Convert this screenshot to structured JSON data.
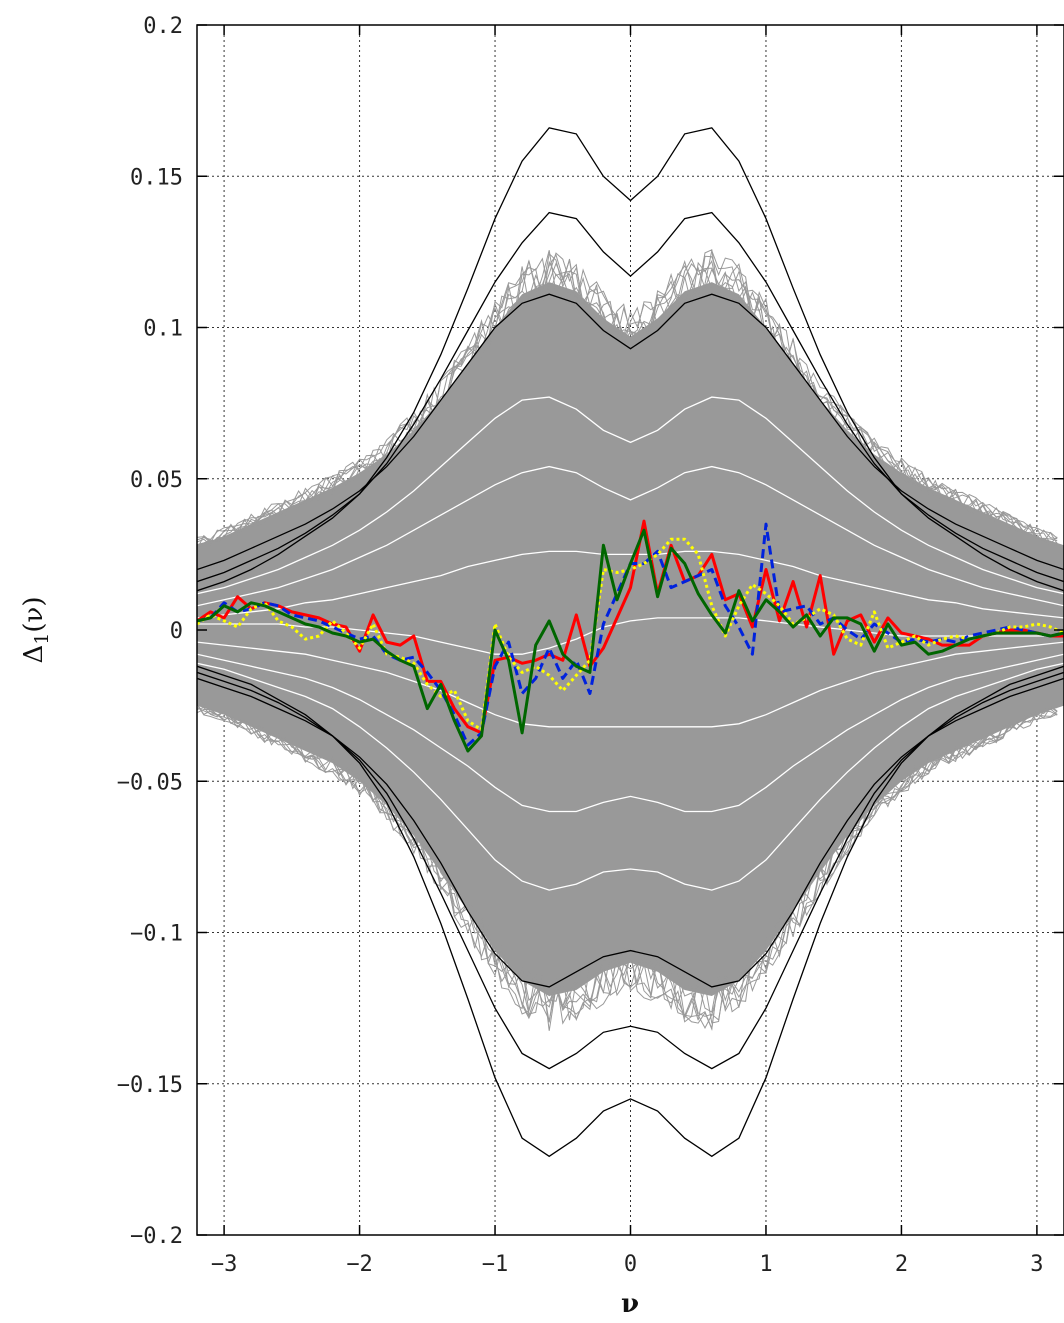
{
  "chart_data": {
    "type": "line",
    "xlabel": "ν",
    "ylabel": "Δ",
    "ylabel_sub": "1",
    "ylabel_arg": "(ν)",
    "xlim": [
      -3.2,
      3.2
    ],
    "ylim": [
      -0.2,
      0.2
    ],
    "x_ticks": [
      -3,
      -2,
      -1,
      0,
      1,
      2,
      3
    ],
    "y_ticks": [
      -0.2,
      -0.15,
      -0.1,
      -0.05,
      0,
      0.05,
      0.1,
      0.15,
      0.2
    ],
    "x_tick_labels": [
      "−3",
      "−2",
      "−1",
      "0",
      "1",
      "2",
      "3"
    ],
    "y_tick_labels": [
      "−0.2",
      "−0.15",
      "−0.1",
      "−0.05",
      "0",
      "0.05",
      "0.1",
      "0.15",
      "0.2"
    ],
    "grid": true,
    "colors": {
      "background": "#ffffff",
      "simulations": "#999999",
      "envelope": "#000000",
      "quantiles": "#ffffff",
      "grid": "#333333"
    },
    "envelope": {
      "x": [
        -3.2,
        -3.0,
        -2.8,
        -2.6,
        -2.4,
        -2.2,
        -2.0,
        -1.8,
        -1.6,
        -1.4,
        -1.2,
        -1.0,
        -0.8,
        -0.6,
        -0.4,
        -0.2,
        0.0,
        0.2,
        0.4,
        0.6,
        0.8,
        1.0,
        1.2,
        1.4,
        1.6,
        1.8,
        2.0,
        2.2,
        2.4,
        2.6,
        2.8,
        3.0,
        3.2
      ],
      "upper": [
        0.028,
        0.031,
        0.035,
        0.039,
        0.043,
        0.047,
        0.052,
        0.058,
        0.066,
        0.076,
        0.088,
        0.1,
        0.111,
        0.115,
        0.112,
        0.103,
        0.097,
        0.103,
        0.112,
        0.115,
        0.111,
        0.1,
        0.088,
        0.076,
        0.066,
        0.058,
        0.052,
        0.047,
        0.043,
        0.039,
        0.035,
        0.031,
        0.028
      ],
      "lower": [
        -0.025,
        -0.028,
        -0.032,
        -0.036,
        -0.04,
        -0.044,
        -0.05,
        -0.058,
        -0.068,
        -0.08,
        -0.093,
        -0.106,
        -0.116,
        -0.121,
        -0.119,
        -0.113,
        -0.11,
        -0.113,
        -0.119,
        -0.121,
        -0.116,
        -0.106,
        -0.093,
        -0.08,
        -0.068,
        -0.058,
        -0.05,
        -0.044,
        -0.04,
        -0.036,
        -0.032,
        -0.028,
        -0.025
      ]
    },
    "black_curves": [
      [
        0.02,
        0.023,
        0.027,
        0.031,
        0.035,
        0.04,
        0.046,
        0.054,
        0.064,
        0.076,
        0.088,
        0.1,
        0.108,
        0.111,
        0.108,
        0.099,
        0.093,
        0.099,
        0.108,
        0.111,
        0.108,
        0.1,
        0.088,
        0.076,
        0.064,
        0.054,
        0.046,
        0.04,
        0.035,
        0.031,
        0.027,
        0.023,
        0.02
      ],
      [
        0.016,
        0.019,
        0.023,
        0.027,
        0.032,
        0.038,
        0.045,
        0.055,
        0.068,
        0.083,
        0.099,
        0.115,
        0.128,
        0.138,
        0.136,
        0.125,
        0.117,
        0.125,
        0.136,
        0.138,
        0.128,
        0.115,
        0.099,
        0.083,
        0.068,
        0.055,
        0.045,
        0.038,
        0.032,
        0.027,
        0.023,
        0.019,
        0.016
      ],
      [
        0.013,
        0.016,
        0.02,
        0.025,
        0.031,
        0.037,
        0.045,
        0.057,
        0.072,
        0.091,
        0.113,
        0.136,
        0.155,
        0.166,
        0.164,
        0.15,
        0.142,
        0.15,
        0.164,
        0.166,
        0.155,
        0.136,
        0.113,
        0.091,
        0.072,
        0.057,
        0.045,
        0.037,
        0.031,
        0.025,
        0.02,
        0.016,
        0.013
      ],
      [
        -0.016,
        -0.019,
        -0.022,
        -0.026,
        -0.03,
        -0.035,
        -0.042,
        -0.051,
        -0.063,
        -0.077,
        -0.093,
        -0.107,
        -0.116,
        -0.118,
        -0.113,
        -0.108,
        -0.106,
        -0.108,
        -0.113,
        -0.118,
        -0.116,
        -0.107,
        -0.093,
        -0.077,
        -0.063,
        -0.051,
        -0.042,
        -0.035,
        -0.03,
        -0.026,
        -0.022,
        -0.019,
        -0.016
      ],
      [
        -0.014,
        -0.017,
        -0.02,
        -0.024,
        -0.029,
        -0.035,
        -0.043,
        -0.054,
        -0.069,
        -0.087,
        -0.106,
        -0.125,
        -0.14,
        -0.145,
        -0.14,
        -0.133,
        -0.131,
        -0.133,
        -0.14,
        -0.145,
        -0.14,
        -0.125,
        -0.106,
        -0.087,
        -0.069,
        -0.054,
        -0.043,
        -0.035,
        -0.029,
        -0.024,
        -0.02,
        -0.017,
        -0.014
      ],
      [
        -0.012,
        -0.015,
        -0.018,
        -0.023,
        -0.028,
        -0.035,
        -0.044,
        -0.057,
        -0.075,
        -0.097,
        -0.122,
        -0.148,
        -0.168,
        -0.174,
        -0.168,
        -0.159,
        -0.155,
        -0.159,
        -0.168,
        -0.174,
        -0.168,
        -0.148,
        -0.122,
        -0.097,
        -0.075,
        -0.057,
        -0.044,
        -0.035,
        -0.028,
        -0.023,
        -0.018,
        -0.015,
        -0.012
      ]
    ],
    "white_curves": [
      [
        0.012,
        0.014,
        0.017,
        0.02,
        0.024,
        0.028,
        0.033,
        0.039,
        0.046,
        0.054,
        0.062,
        0.07,
        0.076,
        0.077,
        0.073,
        0.066,
        0.062,
        0.066,
        0.073,
        0.077,
        0.076,
        0.07,
        0.062,
        0.054,
        0.046,
        0.039,
        0.033,
        0.028,
        0.024,
        0.02,
        0.017,
        0.014,
        0.012
      ],
      [
        0.008,
        0.01,
        0.012,
        0.014,
        0.017,
        0.02,
        0.024,
        0.028,
        0.033,
        0.038,
        0.043,
        0.048,
        0.052,
        0.054,
        0.052,
        0.047,
        0.043,
        0.047,
        0.052,
        0.054,
        0.052,
        0.048,
        0.043,
        0.038,
        0.033,
        0.028,
        0.024,
        0.02,
        0.017,
        0.014,
        0.012,
        0.01,
        0.008
      ],
      [
        0.004,
        0.005,
        0.006,
        0.007,
        0.009,
        0.01,
        0.012,
        0.014,
        0.016,
        0.018,
        0.021,
        0.023,
        0.025,
        0.026,
        0.026,
        0.025,
        0.025,
        0.025,
        0.026,
        0.026,
        0.025,
        0.023,
        0.021,
        0.018,
        0.016,
        0.014,
        0.012,
        0.01,
        0.009,
        0.007,
        0.006,
        0.005,
        0.004
      ],
      [
        0.002,
        0.002,
        0.002,
        0.002,
        0.001,
        0.001,
        0.0,
        -0.001,
        -0.002,
        -0.004,
        -0.006,
        -0.008,
        -0.008,
        -0.006,
        -0.003,
        0.001,
        0.003,
        0.004,
        0.004,
        0.004,
        0.004,
        0.003,
        0.002,
        0.001,
        0.0,
        -0.001,
        -0.002,
        -0.002,
        -0.002,
        -0.002,
        -0.002,
        -0.002,
        -0.002
      ],
      [
        -0.004,
        -0.005,
        -0.006,
        -0.007,
        -0.008,
        -0.01,
        -0.012,
        -0.014,
        -0.017,
        -0.02,
        -0.024,
        -0.028,
        -0.031,
        -0.032,
        -0.032,
        -0.032,
        -0.032,
        -0.032,
        -0.032,
        -0.032,
        -0.031,
        -0.028,
        -0.024,
        -0.02,
        -0.017,
        -0.014,
        -0.012,
        -0.01,
        -0.008,
        -0.007,
        -0.006,
        -0.005,
        -0.004
      ],
      [
        -0.008,
        -0.01,
        -0.012,
        -0.014,
        -0.016,
        -0.019,
        -0.023,
        -0.028,
        -0.033,
        -0.039,
        -0.045,
        -0.052,
        -0.058,
        -0.06,
        -0.06,
        -0.057,
        -0.055,
        -0.057,
        -0.06,
        -0.06,
        -0.058,
        -0.052,
        -0.045,
        -0.039,
        -0.033,
        -0.028,
        -0.023,
        -0.019,
        -0.016,
        -0.014,
        -0.012,
        -0.01,
        -0.008
      ],
      [
        -0.011,
        -0.013,
        -0.016,
        -0.019,
        -0.022,
        -0.026,
        -0.032,
        -0.039,
        -0.047,
        -0.056,
        -0.066,
        -0.076,
        -0.083,
        -0.086,
        -0.084,
        -0.08,
        -0.079,
        -0.08,
        -0.084,
        -0.086,
        -0.083,
        -0.076,
        -0.066,
        -0.056,
        -0.047,
        -0.039,
        -0.032,
        -0.026,
        -0.022,
        -0.019,
        -0.016,
        -0.013,
        -0.011
      ]
    ],
    "series": [
      {
        "color": "#ff0000",
        "style": "solid",
        "width": 3,
        "x": [
          -3.2,
          -3.1,
          -3.0,
          -2.9,
          -2.8,
          -2.7,
          -2.6,
          -2.5,
          -2.4,
          -2.3,
          -2.2,
          -2.1,
          -2.0,
          -1.9,
          -1.8,
          -1.7,
          -1.6,
          -1.5,
          -1.4,
          -1.3,
          -1.2,
          -1.1,
          -1.0,
          -0.9,
          -0.8,
          -0.7,
          -0.6,
          -0.5,
          -0.4,
          -0.3,
          -0.2,
          -0.1,
          0.0,
          0.1,
          0.2,
          0.3,
          0.4,
          0.5,
          0.6,
          0.7,
          0.8,
          0.9,
          1.0,
          1.1,
          1.2,
          1.3,
          1.4,
          1.5,
          1.6,
          1.7,
          1.8,
          1.9,
          2.0,
          2.1,
          2.2,
          2.3,
          2.4,
          2.5,
          2.6,
          2.7,
          2.8,
          2.9,
          3.0,
          3.1,
          3.2
        ],
        "y": [
          0.003,
          0.006,
          0.004,
          0.011,
          0.007,
          0.009,
          0.008,
          0.006,
          0.005,
          0.004,
          0.002,
          0.001,
          -0.007,
          0.005,
          -0.004,
          -0.005,
          -0.002,
          -0.017,
          -0.017,
          -0.026,
          -0.032,
          -0.034,
          -0.01,
          -0.009,
          -0.011,
          -0.01,
          -0.008,
          -0.01,
          0.005,
          -0.012,
          -0.006,
          0.004,
          0.014,
          0.036,
          0.012,
          0.028,
          0.016,
          0.018,
          0.025,
          0.01,
          0.012,
          0.001,
          0.02,
          0.003,
          0.016,
          0.001,
          0.018,
          -0.008,
          0.003,
          0.005,
          -0.004,
          0.004,
          -0.001,
          -0.002,
          -0.003,
          -0.005,
          -0.005,
          -0.005,
          -0.002,
          -0.001,
          0.0,
          0.0,
          -0.001,
          -0.002,
          -0.002
        ]
      },
      {
        "color": "#0022dd",
        "style": "dashed",
        "width": 3,
        "x": [
          -3.2,
          -3.1,
          -3.0,
          -2.9,
          -2.8,
          -2.7,
          -2.6,
          -2.5,
          -2.4,
          -2.3,
          -2.2,
          -2.1,
          -2.0,
          -1.9,
          -1.8,
          -1.7,
          -1.6,
          -1.5,
          -1.4,
          -1.3,
          -1.2,
          -1.1,
          -1.0,
          -0.9,
          -0.8,
          -0.7,
          -0.6,
          -0.5,
          -0.4,
          -0.3,
          -0.2,
          -0.1,
          0.0,
          0.1,
          0.2,
          0.3,
          0.4,
          0.5,
          0.6,
          0.7,
          0.8,
          0.9,
          1.0,
          1.1,
          1.2,
          1.3,
          1.4,
          1.5,
          1.6,
          1.7,
          1.8,
          1.9,
          2.0,
          2.1,
          2.2,
          2.3,
          2.4,
          2.5,
          2.6,
          2.7,
          2.8,
          2.9,
          3.0,
          3.1,
          3.2
        ],
        "y": [
          0.003,
          0.004,
          0.009,
          0.006,
          0.007,
          0.009,
          0.008,
          0.005,
          0.004,
          0.003,
          0.001,
          -0.001,
          -0.003,
          -0.002,
          -0.008,
          -0.01,
          -0.009,
          -0.014,
          -0.02,
          -0.028,
          -0.038,
          -0.034,
          -0.012,
          -0.004,
          -0.021,
          -0.016,
          -0.006,
          -0.016,
          -0.01,
          -0.021,
          0.002,
          0.012,
          0.022,
          0.022,
          0.026,
          0.014,
          0.016,
          0.018,
          0.02,
          0.008,
          0.001,
          -0.008,
          0.035,
          0.006,
          0.007,
          0.008,
          0.002,
          0.004,
          0.0,
          -0.003,
          0.002,
          -0.001,
          -0.004,
          -0.003,
          -0.004,
          -0.003,
          -0.004,
          -0.002,
          -0.001,
          0.0,
          0.001,
          0.0,
          -0.001,
          -0.002,
          -0.001
        ]
      },
      {
        "color": "#ffff00",
        "style": "dotted",
        "width": 3,
        "x": [
          -3.2,
          -3.1,
          -3.0,
          -2.9,
          -2.8,
          -2.7,
          -2.6,
          -2.5,
          -2.4,
          -2.3,
          -2.2,
          -2.1,
          -2.0,
          -1.9,
          -1.8,
          -1.7,
          -1.6,
          -1.5,
          -1.4,
          -1.3,
          -1.2,
          -1.1,
          -1.0,
          -0.9,
          -0.8,
          -0.7,
          -0.6,
          -0.5,
          -0.4,
          -0.3,
          -0.2,
          -0.1,
          0.0,
          0.1,
          0.2,
          0.3,
          0.4,
          0.5,
          0.6,
          0.7,
          0.8,
          0.9,
          1.0,
          1.1,
          1.2,
          1.3,
          1.4,
          1.5,
          1.6,
          1.7,
          1.8,
          1.9,
          2.0,
          2.1,
          2.2,
          2.3,
          2.4,
          2.5,
          2.6,
          2.7,
          2.8,
          2.9,
          3.0,
          3.1,
          3.2
        ],
        "y": [
          0.002,
          0.005,
          0.003,
          0.001,
          0.007,
          0.009,
          0.003,
          0.001,
          -0.003,
          -0.002,
          0.003,
          -0.001,
          -0.006,
          0.002,
          -0.008,
          -0.009,
          -0.011,
          -0.018,
          -0.022,
          -0.02,
          -0.03,
          -0.033,
          0.002,
          -0.009,
          -0.014,
          -0.012,
          -0.015,
          -0.02,
          -0.015,
          -0.01,
          0.02,
          0.019,
          0.02,
          0.022,
          0.025,
          0.03,
          0.03,
          0.025,
          0.008,
          -0.002,
          0.008,
          0.015,
          0.012,
          0.008,
          0.002,
          0.004,
          0.007,
          0.005,
          -0.003,
          -0.005,
          0.006,
          -0.006,
          -0.004,
          -0.002,
          -0.005,
          -0.003,
          -0.002,
          -0.003,
          -0.002,
          -0.001,
          0.001,
          0.001,
          0.002,
          0.001,
          -0.001
        ]
      },
      {
        "color": "#006600",
        "style": "solid",
        "width": 3,
        "x": [
          -3.2,
          -3.1,
          -3.0,
          -2.9,
          -2.8,
          -2.7,
          -2.6,
          -2.5,
          -2.4,
          -2.3,
          -2.2,
          -2.1,
          -2.0,
          -1.9,
          -1.8,
          -1.7,
          -1.6,
          -1.5,
          -1.4,
          -1.3,
          -1.2,
          -1.1,
          -1.0,
          -0.9,
          -0.8,
          -0.7,
          -0.6,
          -0.5,
          -0.4,
          -0.3,
          -0.2,
          -0.1,
          0.0,
          0.1,
          0.2,
          0.3,
          0.4,
          0.5,
          0.6,
          0.7,
          0.8,
          0.9,
          1.0,
          1.1,
          1.2,
          1.3,
          1.4,
          1.5,
          1.6,
          1.7,
          1.8,
          1.9,
          2.0,
          2.1,
          2.2,
          2.3,
          2.4,
          2.5,
          2.6,
          2.7,
          2.8,
          2.9,
          3.0,
          3.1,
          3.2
        ],
        "y": [
          0.003,
          0.004,
          0.008,
          0.006,
          0.009,
          0.008,
          0.006,
          0.004,
          0.002,
          0.001,
          -0.001,
          -0.002,
          -0.004,
          -0.003,
          -0.007,
          -0.01,
          -0.012,
          -0.026,
          -0.018,
          -0.03,
          -0.04,
          -0.035,
          0.0,
          -0.01,
          -0.034,
          -0.005,
          0.003,
          -0.008,
          -0.012,
          -0.014,
          0.028,
          0.01,
          0.022,
          0.033,
          0.011,
          0.027,
          0.022,
          0.012,
          0.005,
          -0.001,
          0.013,
          0.003,
          0.01,
          0.006,
          0.001,
          0.005,
          -0.002,
          0.004,
          0.004,
          0.002,
          -0.007,
          0.002,
          -0.005,
          -0.004,
          -0.008,
          -0.007,
          -0.005,
          -0.003,
          -0.002,
          -0.001,
          -0.001,
          -0.001,
          -0.001,
          -0.002,
          -0.001
        ]
      }
    ]
  }
}
